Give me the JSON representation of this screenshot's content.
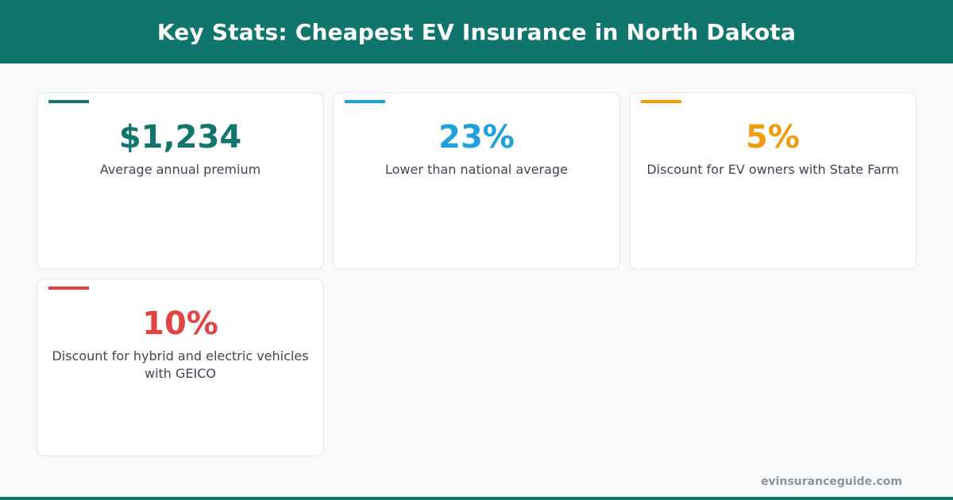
{
  "header": {
    "title": "Key Stats: Cheapest EV Insurance in North Dakota"
  },
  "cards": [
    {
      "value": "$1,234",
      "label": "Average annual premium",
      "color": "#10756d"
    },
    {
      "value": "23%",
      "label": "Lower than national average",
      "color": "#1ea1dc"
    },
    {
      "value": "5%",
      "label": "Discount for EV owners with State Farm",
      "color": "#f09c0e"
    },
    {
      "value": "10%",
      "label": "Discount for hybrid and electric vehicles with GEICO",
      "color": "#e04444"
    }
  ],
  "footer": {
    "site": "evinsuranceguide.com"
  }
}
